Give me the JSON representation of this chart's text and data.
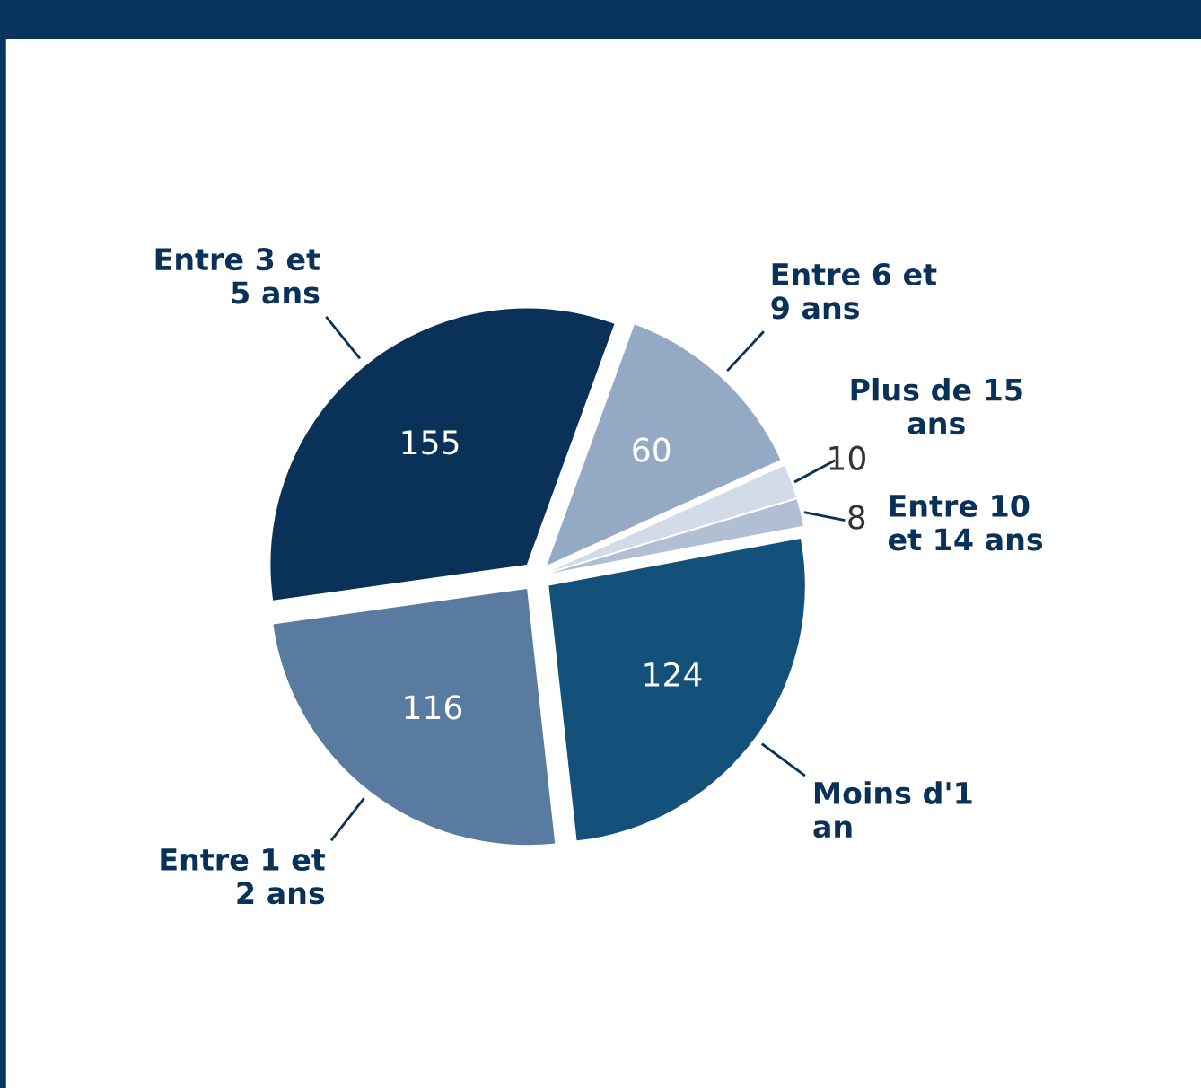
{
  "chart_data": {
    "type": "pie",
    "categories": [
      "Entre 6 et 9 ans",
      "Plus de 15 ans",
      "Entre 10 et 14 ans",
      "Moins d'1 an",
      "Entre 1 et 2 ans",
      "Entre 3 et 5 ans"
    ],
    "values": [
      60,
      10,
      8,
      124,
      116,
      155
    ],
    "colors": [
      "#94a9c3",
      "#d2dce8",
      "#b0bfd4",
      "#13507a",
      "#5a7ba0",
      "#0a3158"
    ],
    "data_labels": true
  }
}
